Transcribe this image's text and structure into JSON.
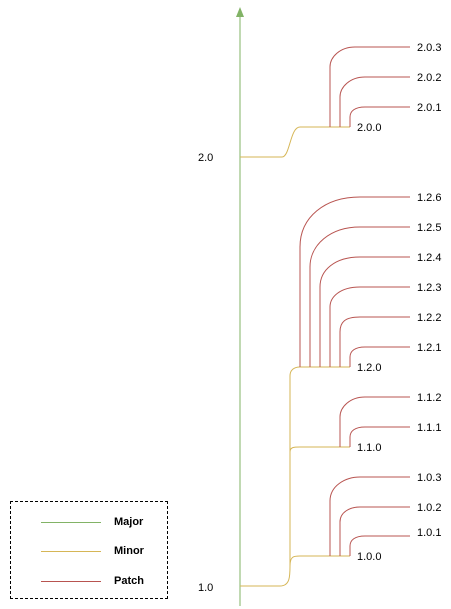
{
  "colors": {
    "major": "#82b366",
    "minor": "#d6b656",
    "patch": "#b85450"
  },
  "labels": {
    "v2_0": "2.0",
    "v1_0": "1.0",
    "v2_0_0": "2.0.0",
    "v2_0_1": "2.0.1",
    "v2_0_2": "2.0.2",
    "v2_0_3": "2.0.3",
    "v1_2_0": "1.2.0",
    "v1_2_1": "1.2.1",
    "v1_2_2": "1.2.2",
    "v1_2_3": "1.2.3",
    "v1_2_4": "1.2.4",
    "v1_2_5": "1.2.5",
    "v1_2_6": "1.2.6",
    "v1_1_0": "1.1.0",
    "v1_1_1": "1.1.1",
    "v1_1_2": "1.1.2",
    "v1_0_0": "1.0.0",
    "v1_0_1": "1.0.1",
    "v1_0_2": "1.0.2",
    "v1_0_3": "1.0.3"
  },
  "legend": {
    "items": [
      {
        "label": "Major",
        "color": "#82b366"
      },
      {
        "label": "Minor",
        "color": "#d6b656"
      },
      {
        "label": "Patch",
        "color": "#b85450"
      }
    ]
  }
}
